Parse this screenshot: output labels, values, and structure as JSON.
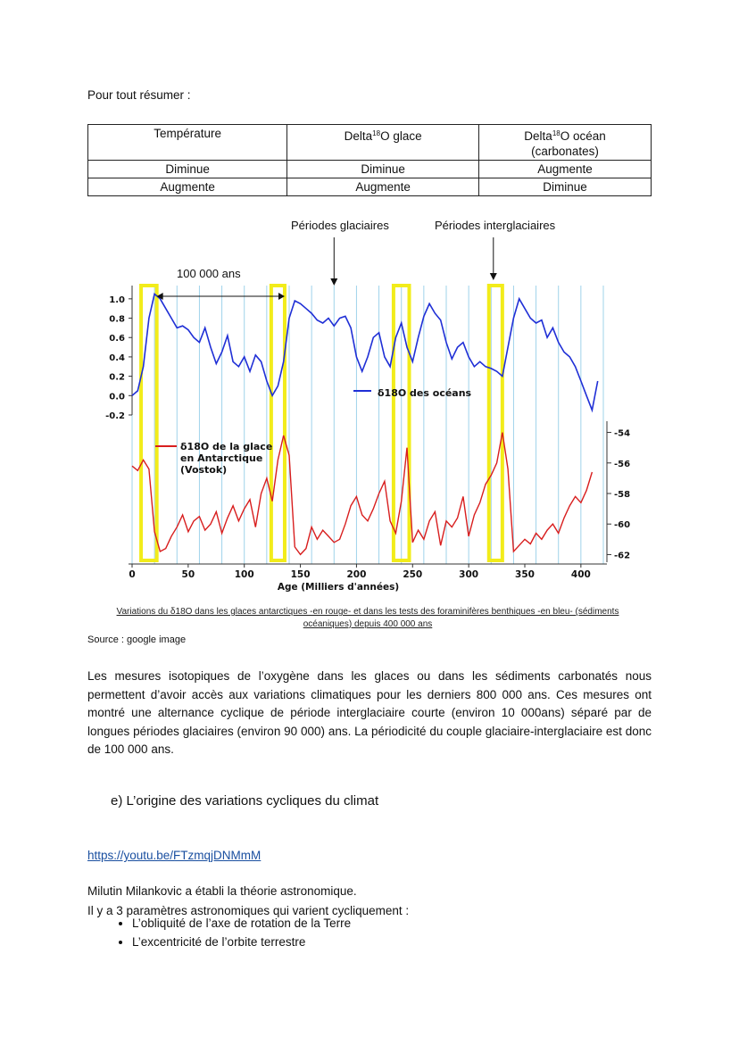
{
  "summary_title": "Pour tout résumer :",
  "table": {
    "headers": [
      {
        "main": "Température",
        "sup": "",
        "after": "",
        "line2": ""
      },
      {
        "main": "Delta",
        "sup": "18",
        "after": "O glace",
        "line2": ""
      },
      {
        "main": "Delta",
        "sup": "18",
        "after": "O océan",
        "line2": "(carbonates)"
      }
    ],
    "rows": [
      [
        "Diminue",
        "Diminue",
        "Augmente"
      ],
      [
        "Augmente",
        "Augmente",
        "Diminue"
      ]
    ]
  },
  "figure": {
    "annot_glaciaires": "Périodes glaciaires",
    "annot_interglaciaires": "Périodes interglaciaires",
    "annot_period": "100 000 ans",
    "caption_line1": "Variations du δ18O dans les glaces antarctiques -en rouge- et dans les tests des foraminifères benthiques -en bleu- (sédiments",
    "caption_line2": "océaniques) depuis 400 000 ans"
  },
  "chart_data": {
    "type": "line",
    "xlabel": "Age (Milliers d'années)",
    "xlim": [
      0,
      420
    ],
    "x_ticks": [
      0,
      50,
      100,
      150,
      200,
      250,
      300,
      350,
      400
    ],
    "series": [
      {
        "name": "δ18O des océans",
        "color": "#1f2fd6",
        "axis": "left",
        "ylim": [
          -0.2,
          1.1
        ],
        "y_ticks": [
          "1.0",
          "0.8",
          "0.6",
          "0.4",
          "0.2",
          "0.0",
          "-0.2"
        ],
        "x": [
          0,
          5,
          10,
          15,
          20,
          25,
          30,
          35,
          40,
          45,
          50,
          55,
          60,
          65,
          70,
          75,
          80,
          85,
          90,
          95,
          100,
          105,
          110,
          115,
          120,
          125,
          130,
          135,
          140,
          145,
          150,
          155,
          160,
          165,
          170,
          175,
          180,
          185,
          190,
          195,
          200,
          205,
          210,
          215,
          220,
          225,
          230,
          235,
          240,
          245,
          250,
          255,
          260,
          265,
          270,
          275,
          280,
          285,
          290,
          295,
          300,
          305,
          310,
          315,
          320,
          325,
          330,
          335,
          340,
          345,
          350,
          355,
          360,
          365,
          370,
          375,
          380,
          385,
          390,
          395,
          400,
          405,
          410,
          415
        ],
        "y": [
          0.0,
          0.05,
          0.3,
          0.8,
          1.05,
          1.0,
          0.9,
          0.8,
          0.7,
          0.72,
          0.68,
          0.6,
          0.55,
          0.7,
          0.5,
          0.33,
          0.45,
          0.62,
          0.35,
          0.3,
          0.4,
          0.25,
          0.42,
          0.35,
          0.15,
          0.0,
          0.1,
          0.35,
          0.8,
          0.98,
          0.95,
          0.9,
          0.85,
          0.78,
          0.75,
          0.8,
          0.72,
          0.8,
          0.82,
          0.7,
          0.4,
          0.25,
          0.4,
          0.6,
          0.65,
          0.4,
          0.3,
          0.6,
          0.75,
          0.5,
          0.35,
          0.6,
          0.82,
          0.95,
          0.85,
          0.78,
          0.55,
          0.38,
          0.5,
          0.55,
          0.4,
          0.3,
          0.35,
          0.3,
          0.28,
          0.25,
          0.2,
          0.5,
          0.8,
          1.0,
          0.9,
          0.8,
          0.75,
          0.78,
          0.6,
          0.7,
          0.55,
          0.45,
          0.4,
          0.3,
          0.15,
          0.0,
          -0.15,
          0.15
        ]
      },
      {
        "name": "δ18O de la glace en Antarctique (Vostok)",
        "color": "#d81e1e",
        "axis": "right",
        "ylim": [
          -62.5,
          -53.5
        ],
        "y_ticks": [
          "-54",
          "-56",
          "-58",
          "-60",
          "-62"
        ],
        "x": [
          0,
          5,
          10,
          15,
          20,
          25,
          30,
          35,
          40,
          45,
          50,
          55,
          60,
          65,
          70,
          75,
          80,
          85,
          90,
          95,
          100,
          105,
          110,
          115,
          120,
          125,
          130,
          135,
          140,
          145,
          150,
          155,
          160,
          165,
          170,
          175,
          180,
          185,
          190,
          195,
          200,
          205,
          210,
          215,
          220,
          225,
          230,
          235,
          240,
          245,
          250,
          255,
          260,
          265,
          270,
          275,
          280,
          285,
          290,
          295,
          300,
          305,
          310,
          315,
          320,
          325,
          330,
          335,
          340,
          345,
          350,
          355,
          360,
          365,
          370,
          375,
          380,
          385,
          390,
          395,
          400,
          405,
          410
        ],
        "y": [
          -56.2,
          -56.5,
          -55.8,
          -56.4,
          -60.5,
          -61.8,
          -61.6,
          -60.8,
          -60.2,
          -59.4,
          -60.5,
          -59.8,
          -59.5,
          -60.4,
          -60.0,
          -59.2,
          -60.6,
          -59.6,
          -58.8,
          -59.8,
          -59.0,
          -58.4,
          -60.2,
          -58.0,
          -57.0,
          -58.5,
          -55.8,
          -54.2,
          -55.5,
          -61.5,
          -62.0,
          -61.6,
          -60.2,
          -61.0,
          -60.4,
          -60.8,
          -61.2,
          -61.0,
          -60.0,
          -58.8,
          -58.2,
          -59.4,
          -59.8,
          -59.0,
          -58.0,
          -57.2,
          -59.8,
          -60.6,
          -58.5,
          -55.0,
          -61.2,
          -60.4,
          -61.0,
          -59.8,
          -59.2,
          -61.4,
          -59.8,
          -60.2,
          -59.6,
          -58.2,
          -60.8,
          -59.4,
          -58.6,
          -57.4,
          -56.8,
          -56.0,
          -54.0,
          -56.4,
          -61.8,
          -61.4,
          -61.0,
          -61.3,
          -60.6,
          -61.0,
          -60.4,
          -60.0,
          -60.6,
          -59.6,
          -58.8,
          -58.2,
          -58.6,
          -57.8,
          -56.6
        ]
      }
    ],
    "highlighted_interglacials_x": [
      [
        8,
        22
      ],
      [
        124,
        136
      ],
      [
        233,
        247
      ],
      [
        318,
        330
      ]
    ],
    "glaciaire_arrow_x": 180,
    "interglaciaire_arrow_x": 322,
    "period_arrow_x": [
      22,
      136
    ]
  },
  "source": "Source : google image",
  "paragraph": "Les mesures isotopiques de l’oxygène dans les glaces ou dans les sédiments carbonatés nous permettent d’avoir accès aux variations climatiques pour les derniers 800 000 ans. Ces mesures ont montré une alternance cyclique de période interglaciaire courte (environ 10 000ans) séparé par de longues périodes glaciaires (environ 90 000) ans. La périodicité du couple glaciaire-interglaciaire est donc de 100 000 ans.",
  "section_title": "e)   L’origine des variations cycliques du climat",
  "link": "https://youtu.be/FTzmqjDNMmM",
  "line1": "Milutin Milankovic a établi la théorie astronomique.",
  "line2": "Il y a 3 paramètres astronomiques qui varient cycliquement :",
  "bullets": [
    "L’obliquité de l’axe de rotation de la Terre",
    "L’excentricité de l’orbite terrestre"
  ]
}
